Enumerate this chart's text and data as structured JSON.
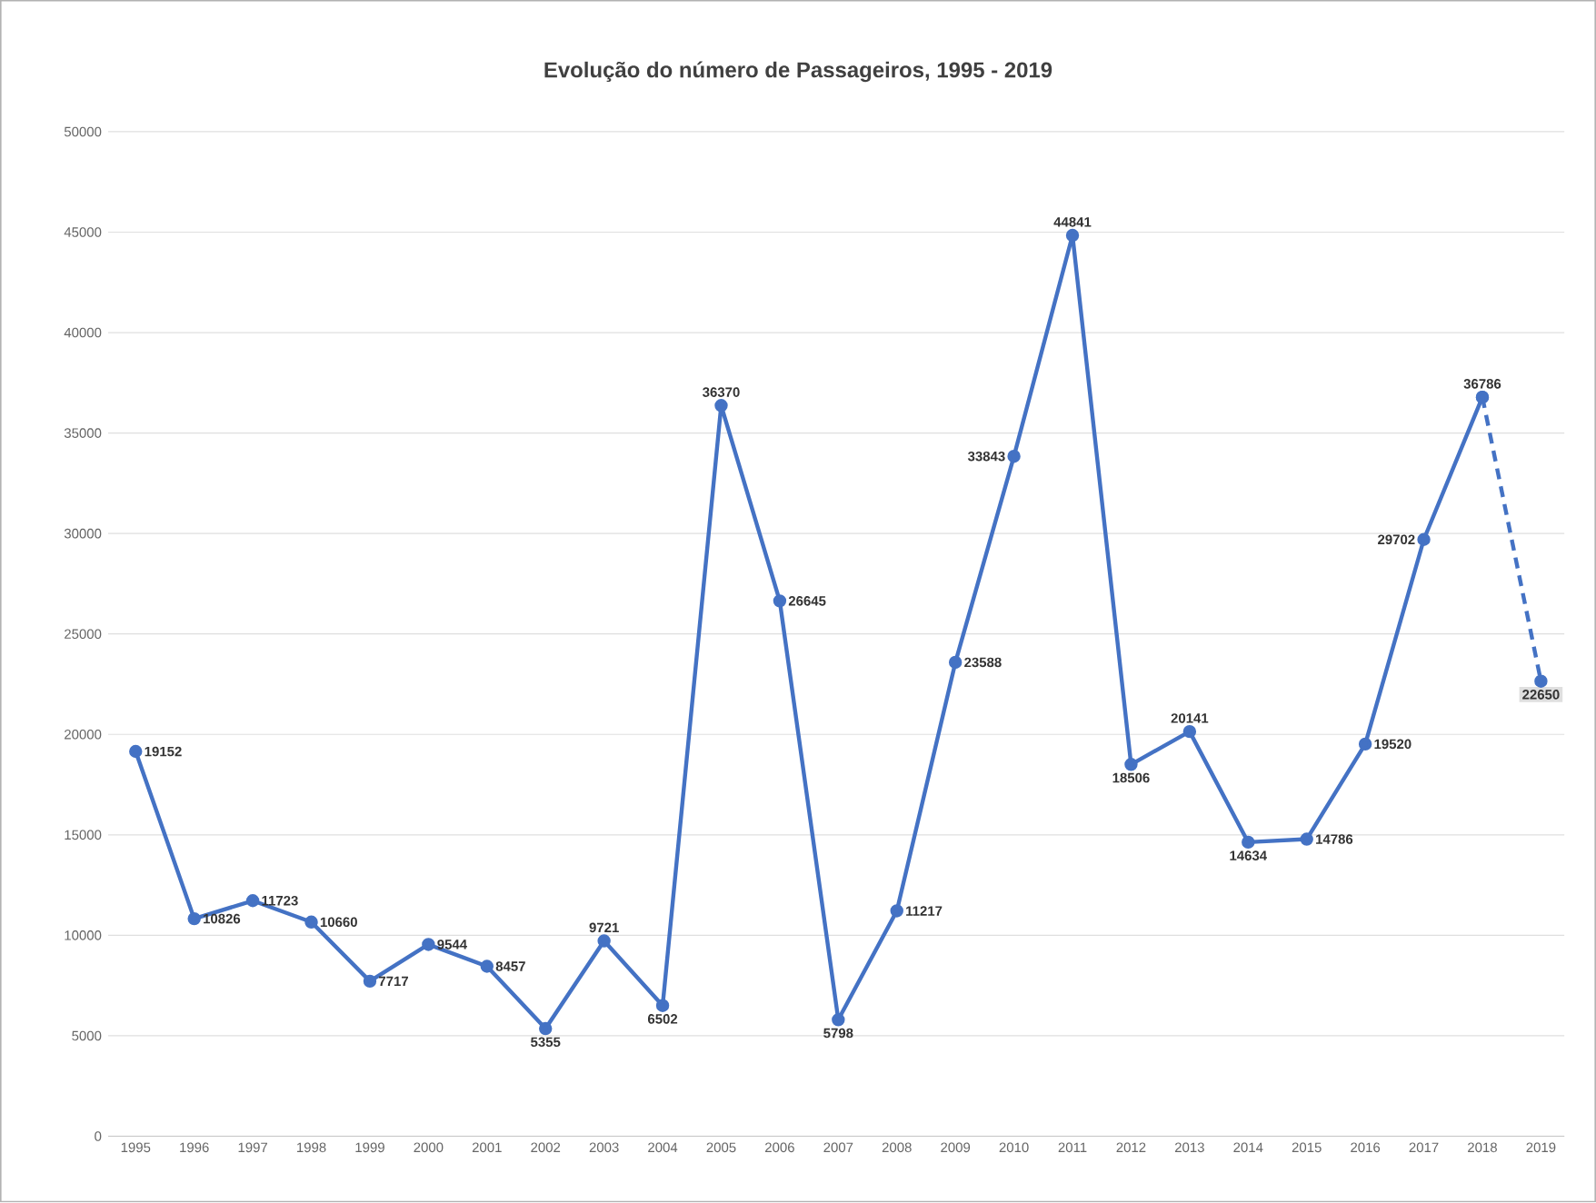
{
  "chart_data": {
    "type": "line",
    "title": "Evolução do número de Passageiros, 1995 - 2019",
    "categories": [
      "1995",
      "1996",
      "1997",
      "1998",
      "1999",
      "2000",
      "2001",
      "2002",
      "2003",
      "2004",
      "2005",
      "2006",
      "2007",
      "2008",
      "2009",
      "2010",
      "2011",
      "2012",
      "2013",
      "2014",
      "2015",
      "2016",
      "2017",
      "2018",
      "2019"
    ],
    "series": [
      {
        "color": "#4472c4",
        "line_style": "solid",
        "values": [
          19152,
          10826,
          11723,
          10660,
          7717,
          9544,
          8457,
          5355,
          9721,
          6502,
          36370,
          26645,
          5798,
          11217,
          23588,
          33843,
          44841,
          18506,
          20141,
          14634,
          14786,
          19520,
          29702,
          36786,
          null
        ],
        "value_labels": [
          "19152",
          "10826",
          "11723",
          "10660",
          "7717",
          "9544",
          "8457",
          "5355",
          "9721",
          "6502",
          "36370",
          "26645",
          "5798",
          "11217",
          "23588",
          "33843",
          "44841",
          "18506",
          "20141",
          "14634",
          "14786",
          "19520",
          "29702",
          "36786",
          null
        ]
      },
      {
        "color": "#4472c4",
        "line_style": "dashed",
        "values": [
          null,
          null,
          null,
          null,
          null,
          null,
          null,
          null,
          null,
          null,
          null,
          null,
          null,
          null,
          null,
          null,
          null,
          null,
          null,
          null,
          null,
          null,
          null,
          36786,
          22650
        ],
        "value_labels": [
          null,
          null,
          null,
          null,
          null,
          null,
          null,
          null,
          null,
          null,
          null,
          null,
          null,
          null,
          null,
          null,
          null,
          null,
          null,
          null,
          null,
          null,
          null,
          null,
          "22650"
        ]
      }
    ],
    "ylim": [
      0,
      50000
    ],
    "yticks": [
      0,
      5000,
      10000,
      15000,
      20000,
      25000,
      30000,
      35000,
      40000,
      45000,
      50000
    ],
    "grid": "y",
    "marker": "circle"
  }
}
